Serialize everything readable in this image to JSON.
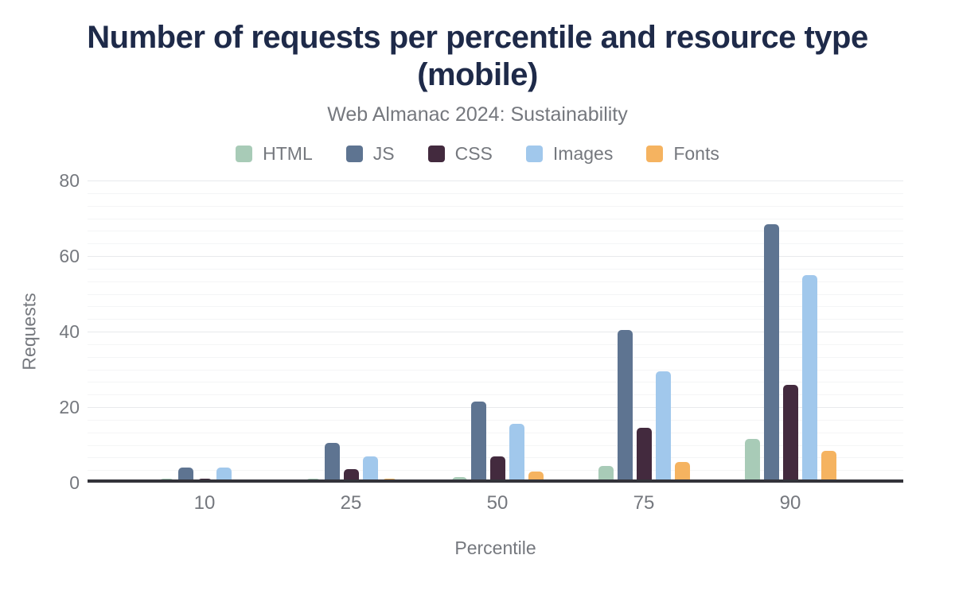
{
  "chart_data": {
    "type": "bar",
    "title": "Number of requests per percentile and resource type (mobile)",
    "subtitle": "Web Almanac 2024: Sustainability",
    "categories": [
      "10",
      "25",
      "50",
      "75",
      "90"
    ],
    "series": [
      {
        "name": "HTML",
        "color": "#a8cbb7",
        "values": [
          1,
          1,
          1.5,
          4.5,
          11.5
        ]
      },
      {
        "name": "JS",
        "color": "#5e7491",
        "values": [
          4,
          10.5,
          21.5,
          40.5,
          68.5
        ]
      },
      {
        "name": "CSS",
        "color": "#432a3e",
        "values": [
          1,
          3.5,
          7,
          14.5,
          26
        ]
      },
      {
        "name": "Images",
        "color": "#a1c8ec",
        "values": [
          4,
          7,
          15.5,
          29.5,
          55
        ]
      },
      {
        "name": "Fonts",
        "color": "#f5b360",
        "values": [
          0,
          1,
          3,
          5.5,
          8.5
        ]
      }
    ],
    "xlabel": "Percentile",
    "ylabel": "Requests",
    "ylim": [
      0,
      80
    ],
    "yticks": [
      0,
      20,
      40,
      60,
      80
    ],
    "minor_grid_step": 3.3333,
    "grid": "horizontal",
    "legend_position": "top"
  },
  "style": {
    "title_color": "#1e2a49",
    "muted_text_color": "#75787e",
    "axis_line_color": "#33333a",
    "grid_major_color": "#e8eaec",
    "grid_minor_color": "#f4f5f6",
    "background_color": "#ffffff"
  }
}
